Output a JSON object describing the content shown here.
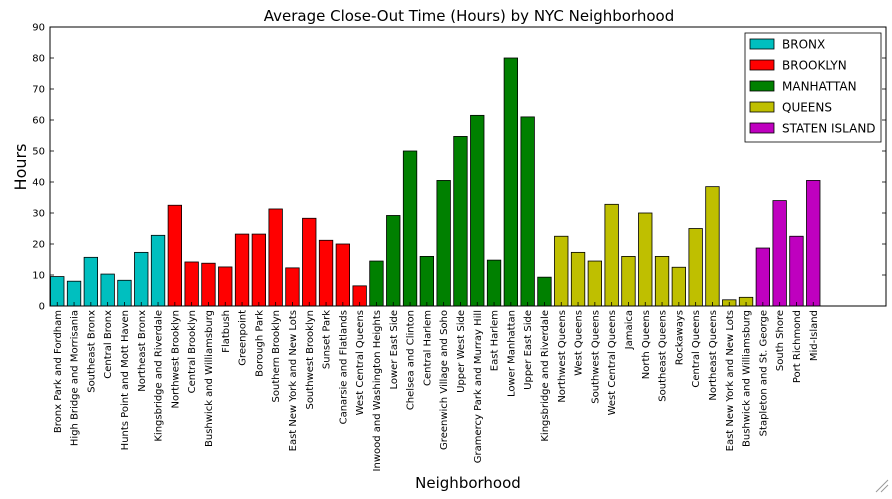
{
  "chart_data": {
    "type": "bar",
    "title": "Average Close-Out Time (Hours) by NYC Neighborhood",
    "xlabel": "Neighborhood",
    "ylabel": "Hours",
    "ylim": [
      0,
      90
    ],
    "yticks": [
      0,
      10,
      20,
      30,
      40,
      50,
      60,
      70,
      80,
      90
    ],
    "grid": false,
    "legend_position": "top-right",
    "series": [
      {
        "name": "BRONX",
        "color": "#00BFBF"
      },
      {
        "name": "BROOKLYN",
        "color": "#FF0000"
      },
      {
        "name": "MANHATTAN",
        "color": "#008000"
      },
      {
        "name": "QUEENS",
        "color": "#BFBF00"
      },
      {
        "name": "STATEN ISLAND",
        "color": "#BF00BF"
      }
    ],
    "bars": [
      {
        "category": "Bronx Park and Fordham",
        "series": "BRONX",
        "value": 9.5
      },
      {
        "category": "High Bridge and Morrisania",
        "series": "BRONX",
        "value": 8
      },
      {
        "category": "Southeast Bronx",
        "series": "BRONX",
        "value": 15.7
      },
      {
        "category": "Central Bronx",
        "series": "BRONX",
        "value": 10.3
      },
      {
        "category": "Hunts Point and Mott Haven",
        "series": "BRONX",
        "value": 8.3
      },
      {
        "category": "Northeast Bronx",
        "series": "BRONX",
        "value": 17.3
      },
      {
        "category": "Kingsbridge and Riverdale",
        "series": "BRONX",
        "value": 22.8
      },
      {
        "category": "Northwest Brooklyn",
        "series": "BROOKLYN",
        "value": 32.5
      },
      {
        "category": "Central Brooklyn",
        "series": "BROOKLYN",
        "value": 14.2
      },
      {
        "category": "Bushwick and Williamsburg",
        "series": "BROOKLYN",
        "value": 13.8
      },
      {
        "category": "Flatbush",
        "series": "BROOKLYN",
        "value": 12.6
      },
      {
        "category": "Greenpoint",
        "series": "BROOKLYN",
        "value": 23.2
      },
      {
        "category": "Borough Park",
        "series": "BROOKLYN",
        "value": 23.2
      },
      {
        "category": "Southern Brooklyn",
        "series": "BROOKLYN",
        "value": 31.3
      },
      {
        "category": "East New York and New Lots",
        "series": "BROOKLYN",
        "value": 12.3
      },
      {
        "category": "Southwest Brooklyn",
        "series": "BROOKLYN",
        "value": 28.3
      },
      {
        "category": "Sunset Park",
        "series": "BROOKLYN",
        "value": 21.2
      },
      {
        "category": "Canarsie and Flatlands",
        "series": "BROOKLYN",
        "value": 20
      },
      {
        "category": "West Central Queens",
        "series": "BROOKLYN",
        "value": 6.5
      },
      {
        "category": "Inwood and Washington Heights",
        "series": "MANHATTAN",
        "value": 14.5
      },
      {
        "category": "Lower East Side",
        "series": "MANHATTAN",
        "value": 29.2
      },
      {
        "category": "Chelsea and Clinton",
        "series": "MANHATTAN",
        "value": 50
      },
      {
        "category": "Central Harlem",
        "series": "MANHATTAN",
        "value": 16
      },
      {
        "category": "Greenwich Village and Soho",
        "series": "MANHATTAN",
        "value": 40.5
      },
      {
        "category": "Upper West Side",
        "series": "MANHATTAN",
        "value": 54.7
      },
      {
        "category": "Gramercy Park and Murray Hill",
        "series": "MANHATTAN",
        "value": 61.5
      },
      {
        "category": "East Harlem",
        "series": "MANHATTAN",
        "value": 14.8
      },
      {
        "category": "Lower Manhattan",
        "series": "MANHATTAN",
        "value": 80
      },
      {
        "category": "Upper East Side",
        "series": "MANHATTAN",
        "value": 61
      },
      {
        "category": "Kingsbridge and Riverdale",
        "series": "MANHATTAN",
        "value": 9.3
      },
      {
        "category": "Northwest Queens",
        "series": "QUEENS",
        "value": 22.5
      },
      {
        "category": "West Queens",
        "series": "QUEENS",
        "value": 17.3
      },
      {
        "category": "Southwest Queens",
        "series": "QUEENS",
        "value": 14.5
      },
      {
        "category": "West Central Queens",
        "series": "QUEENS",
        "value": 32.8
      },
      {
        "category": "Jamaica",
        "series": "QUEENS",
        "value": 16
      },
      {
        "category": "North Queens",
        "series": "QUEENS",
        "value": 30
      },
      {
        "category": "Southeast Queens",
        "series": "QUEENS",
        "value": 16
      },
      {
        "category": "Rockaways",
        "series": "QUEENS",
        "value": 12.5
      },
      {
        "category": "Central Queens",
        "series": "QUEENS",
        "value": 25
      },
      {
        "category": "Northeast Queens",
        "series": "QUEENS",
        "value": 38.5
      },
      {
        "category": "East New York and New Lots",
        "series": "QUEENS",
        "value": 2
      },
      {
        "category": "Bushwick and Williamsburg",
        "series": "QUEENS",
        "value": 2.8
      },
      {
        "category": "Stapleton and St. George",
        "series": "STATEN ISLAND",
        "value": 18.7
      },
      {
        "category": "South Shore",
        "series": "STATEN ISLAND",
        "value": 34
      },
      {
        "category": "Port Richmond",
        "series": "STATEN ISLAND",
        "value": 22.5
      },
      {
        "category": "Mid-Island",
        "series": "STATEN ISLAND",
        "value": 40.5
      }
    ]
  }
}
